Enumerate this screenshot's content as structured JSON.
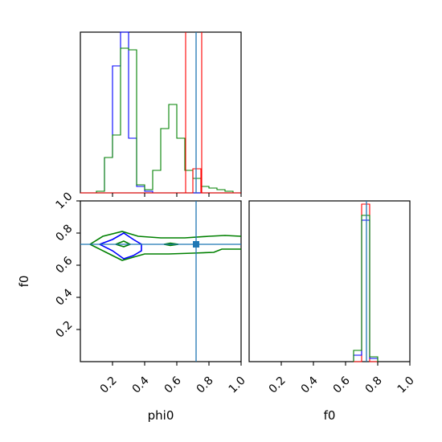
{
  "chart_data": {
    "type": "corner",
    "parameters": [
      "phi0",
      "f0"
    ],
    "axis_labels": {
      "x_bottom_left": "phi0",
      "x_bottom_right": "f0",
      "y_left": "f0"
    },
    "ticks": {
      "phi0": [
        "0.2",
        "0.4",
        "0.6",
        "0.8",
        "1.0"
      ],
      "f0": [
        "0.2",
        "0.4",
        "0.6",
        "0.8",
        "1.0"
      ]
    },
    "ranges": {
      "phi0": [
        0.0,
        1.0
      ],
      "f0": [
        0.0,
        1.0
      ]
    },
    "truth": {
      "phi0": 0.72,
      "f0": 0.73,
      "color": "#1f77b4"
    },
    "colors": {
      "red": "#ff0000",
      "blue": "#0000ff",
      "green": "#008000"
    },
    "hist_phi0": {
      "bin_edges": [
        0.0,
        0.05,
        0.1,
        0.15,
        0.2,
        0.25,
        0.3,
        0.35,
        0.4,
        0.45,
        0.5,
        0.55,
        0.6,
        0.65,
        0.7,
        0.75,
        0.8,
        0.85,
        0.9,
        0.95,
        1.0
      ],
      "series": [
        {
          "color": "blue",
          "counts": [
            0,
            0,
            0.01,
            0.22,
            0.79,
            1.08,
            0.34,
            0.04,
            0.01,
            0,
            0,
            0,
            0,
            0,
            0,
            0,
            0,
            0,
            0,
            0
          ]
        },
        {
          "color": "green",
          "counts": [
            0,
            0,
            0.01,
            0.22,
            0.36,
            0.9,
            0.89,
            0.05,
            0.02,
            0.14,
            0.4,
            0.55,
            0.34,
            0.14,
            0.09,
            0.04,
            0.03,
            0.02,
            0.01,
            0
          ]
        },
        {
          "color": "red",
          "lines": [
            0.655,
            0.755
          ],
          "counts_tail": [
            0.0,
            0.0,
            0.0,
            0.0,
            0.0,
            0.0,
            0.0,
            0.0,
            0.0,
            0.0,
            0.0,
            0.0,
            0.0,
            0.0,
            0.15,
            0.0,
            0.0,
            0.0,
            0.0,
            0.0
          ]
        }
      ],
      "ylim": [
        0,
        1.0
      ]
    },
    "hist_f0": {
      "bin_edges": [
        0.65,
        0.7,
        0.75,
        0.8
      ],
      "series": [
        {
          "color": "red",
          "counts": [
            0.0,
            0.98,
            0.0
          ]
        },
        {
          "color": "blue",
          "counts": [
            0.04,
            0.88,
            0.02
          ]
        },
        {
          "color": "green",
          "counts": [
            0.07,
            0.91,
            0.03
          ]
        }
      ],
      "ylim": [
        0,
        1.0
      ]
    },
    "contours": {
      "blue": [
        [
          [
            0.12,
            0.73
          ],
          [
            0.2,
            0.76
          ],
          [
            0.27,
            0.8
          ],
          [
            0.33,
            0.76
          ],
          [
            0.38,
            0.73
          ],
          [
            0.38,
            0.69
          ],
          [
            0.33,
            0.66
          ],
          [
            0.27,
            0.64
          ],
          [
            0.2,
            0.69
          ],
          [
            0.12,
            0.73
          ]
        ]
      ],
      "green": [
        [
          [
            0.06,
            0.73
          ],
          [
            0.14,
            0.78
          ],
          [
            0.26,
            0.81
          ],
          [
            0.36,
            0.78
          ],
          [
            0.5,
            0.77
          ],
          [
            0.65,
            0.77
          ],
          [
            0.8,
            0.78
          ],
          [
            0.9,
            0.785
          ],
          [
            1.0,
            0.78
          ]
        ],
        [
          [
            1.0,
            0.7
          ],
          [
            0.88,
            0.7
          ],
          [
            0.83,
            0.68
          ],
          [
            0.7,
            0.675
          ],
          [
            0.55,
            0.67
          ],
          [
            0.4,
            0.67
          ],
          [
            0.33,
            0.65
          ],
          [
            0.26,
            0.63
          ],
          [
            0.16,
            0.68
          ],
          [
            0.06,
            0.73
          ]
        ],
        [
          [
            0.22,
            0.73
          ],
          [
            0.27,
            0.75
          ],
          [
            0.31,
            0.73
          ],
          [
            0.27,
            0.715
          ],
          [
            0.22,
            0.73
          ]
        ],
        [
          [
            0.52,
            0.73
          ],
          [
            0.56,
            0.737
          ],
          [
            0.61,
            0.73
          ],
          [
            0.56,
            0.723
          ],
          [
            0.52,
            0.73
          ]
        ]
      ]
    }
  }
}
